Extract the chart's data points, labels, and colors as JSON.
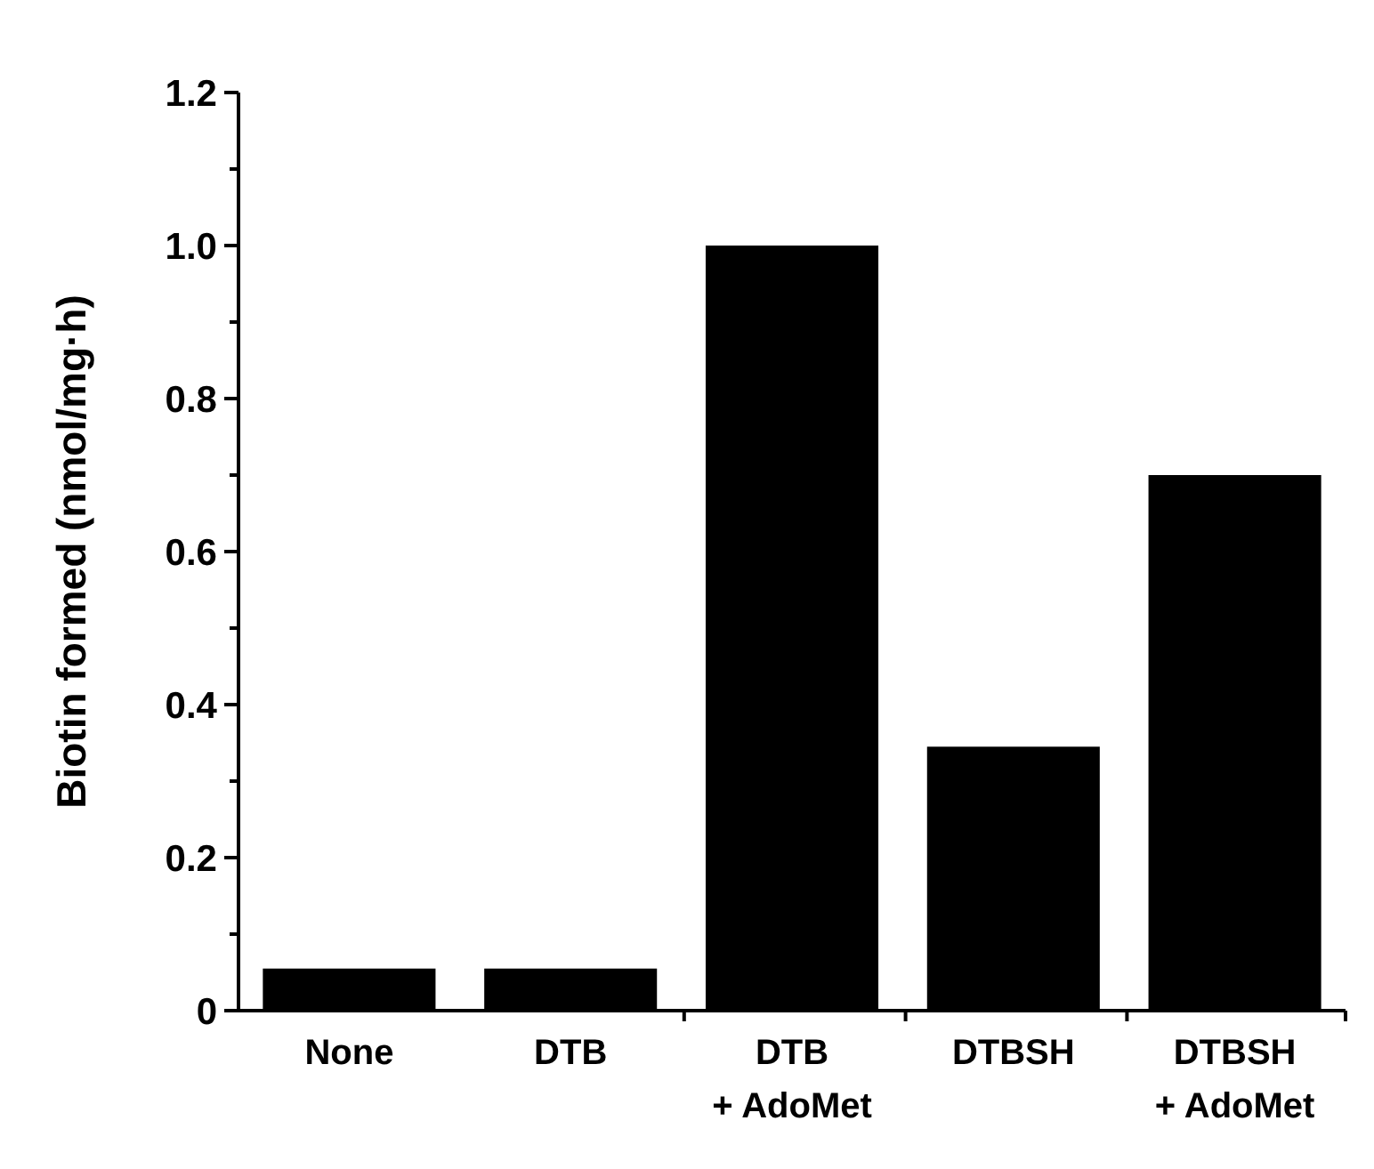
{
  "chart_data": {
    "type": "bar",
    "ylabel": "Biotin formed (nmol/mg·h)",
    "categories": [
      "None",
      "DTB",
      "DTB\n+ AdoMet",
      "DTBSH",
      "DTBSH\n+ AdoMet"
    ],
    "values": [
      0.055,
      0.055,
      1.0,
      0.345,
      0.7
    ],
    "color": "#000000",
    "ylim": [
      0,
      1.2
    ],
    "yticks": [
      0,
      {
        "value": 0.1,
        "label": null
      },
      {
        "value": 0.2,
        "label": "0.2"
      },
      {
        "value": 0.3,
        "label": null
      },
      {
        "value": 0.4,
        "label": "0.4"
      },
      {
        "value": 0.5,
        "label": null
      },
      {
        "value": 0.6,
        "label": "0.6"
      },
      {
        "value": 0.7,
        "label": null
      },
      {
        "value": 0.8,
        "label": "0.8"
      },
      {
        "value": 0.9,
        "label": null
      },
      {
        "value": 1.0,
        "label": "1.0"
      },
      {
        "value": 1.1,
        "label": null
      },
      {
        "value": 1.2,
        "label": "1.2"
      }
    ],
    "grid": false
  }
}
